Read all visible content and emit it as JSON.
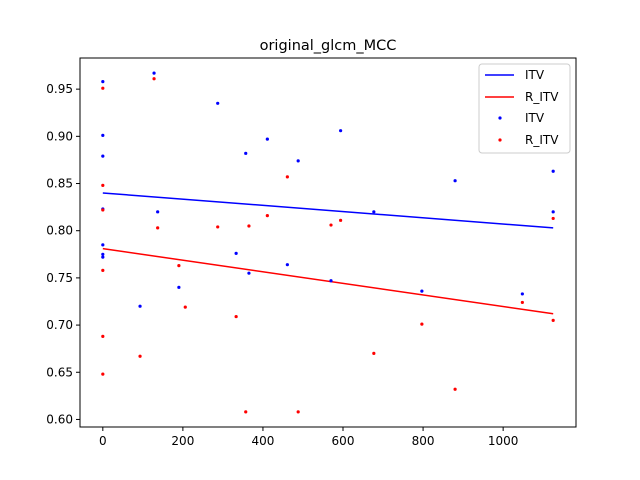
{
  "chart_data": {
    "type": "scatter",
    "title": "original_glcm_MCC",
    "xlabel": "",
    "ylabel": "",
    "xlim": [
      -57,
      1182
    ],
    "ylim": [
      0.592,
      0.983
    ],
    "x_ticks": [
      0,
      200,
      400,
      600,
      800,
      1000
    ],
    "y_ticks": [
      0.6,
      0.65,
      0.7,
      0.75,
      0.8,
      0.85,
      0.9,
      0.95
    ],
    "y_tick_labels": [
      "0.60",
      "0.65",
      "0.70",
      "0.75",
      "0.80",
      "0.85",
      "0.90",
      "0.95"
    ],
    "grid": false,
    "legend_position": "top-right",
    "lines": [
      {
        "name": "ITV",
        "color": "#0000ff",
        "x": [
          0,
          1125
        ],
        "y": [
          0.84,
          0.803
        ]
      },
      {
        "name": "R_ITV",
        "color": "#ff0000",
        "x": [
          0,
          1125
        ],
        "y": [
          0.781,
          0.712
        ]
      }
    ],
    "series": [
      {
        "name": "ITV",
        "color": "#0000ff",
        "points": [
          [
            0,
            0.958
          ],
          [
            0,
            0.901
          ],
          [
            0,
            0.879
          ],
          [
            0,
            0.823
          ],
          [
            0,
            0.785
          ],
          [
            0,
            0.775
          ],
          [
            0,
            0.772
          ],
          [
            93,
            0.72
          ],
          [
            128,
            0.967
          ],
          [
            137,
            0.82
          ],
          [
            190,
            0.74
          ],
          [
            287,
            0.935
          ],
          [
            333,
            0.776
          ],
          [
            357,
            0.882
          ],
          [
            365,
            0.755
          ],
          [
            411,
            0.897
          ],
          [
            461,
            0.764
          ],
          [
            488,
            0.874
          ],
          [
            570,
            0.747
          ],
          [
            594,
            0.906
          ],
          [
            677,
            0.82
          ],
          [
            797,
            0.736
          ],
          [
            880,
            0.853
          ],
          [
            1048,
            0.733
          ],
          [
            1125,
            0.863
          ],
          [
            1125,
            0.82
          ]
        ]
      },
      {
        "name": "R_ITV",
        "color": "#ff0000",
        "points": [
          [
            0,
            0.951
          ],
          [
            0,
            0.848
          ],
          [
            0,
            0.822
          ],
          [
            0,
            0.758
          ],
          [
            0,
            0.688
          ],
          [
            0,
            0.648
          ],
          [
            93,
            0.667
          ],
          [
            128,
            0.961
          ],
          [
            137,
            0.803
          ],
          [
            190,
            0.763
          ],
          [
            206,
            0.719
          ],
          [
            287,
            0.804
          ],
          [
            333,
            0.709
          ],
          [
            357,
            0.608
          ],
          [
            365,
            0.805
          ],
          [
            411,
            0.816
          ],
          [
            461,
            0.857
          ],
          [
            488,
            0.608
          ],
          [
            570,
            0.806
          ],
          [
            594,
            0.811
          ],
          [
            677,
            0.67
          ],
          [
            797,
            0.701
          ],
          [
            880,
            0.632
          ],
          [
            1048,
            0.724
          ],
          [
            1125,
            0.813
          ],
          [
            1125,
            0.705
          ]
        ]
      }
    ],
    "legend": [
      {
        "label": "ITV",
        "kind": "line",
        "color": "#0000ff"
      },
      {
        "label": "R_ITV",
        "kind": "line",
        "color": "#ff0000"
      },
      {
        "label": "ITV",
        "kind": "marker",
        "color": "#0000ff"
      },
      {
        "label": "R_ITV",
        "kind": "marker",
        "color": "#ff0000"
      }
    ]
  }
}
